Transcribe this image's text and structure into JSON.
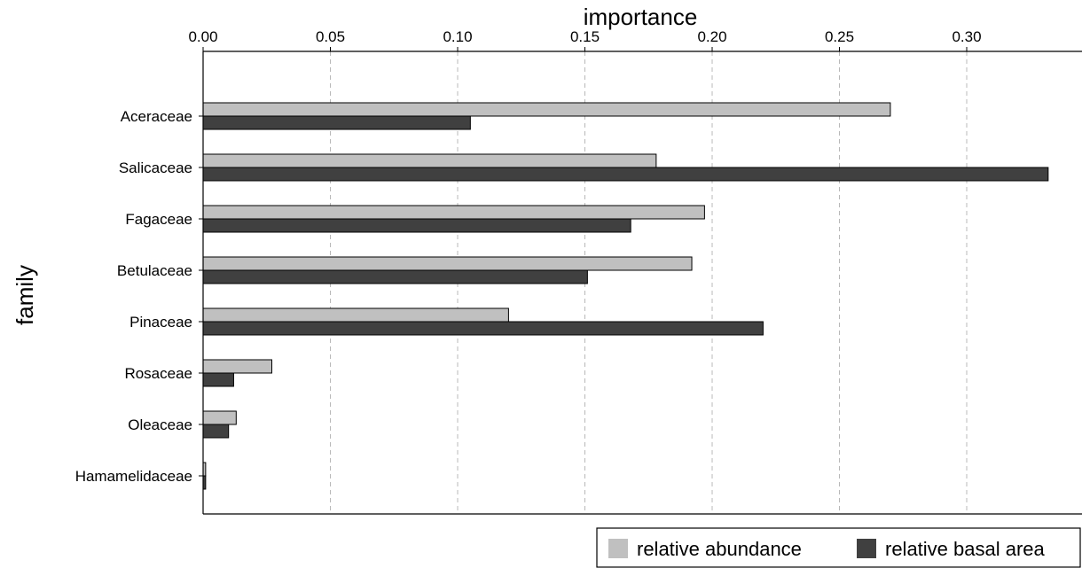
{
  "chart_data": {
    "type": "bar",
    "orientation": "horizontal",
    "xlabel": "importance",
    "ylabel": "family",
    "xlim": [
      0,
      0.34
    ],
    "xticks": [
      0.0,
      0.05,
      0.1,
      0.15,
      0.2,
      0.25,
      0.3
    ],
    "xtick_labels": [
      "0.00",
      "0.05",
      "0.10",
      "0.15",
      "0.20",
      "0.25",
      "0.30"
    ],
    "x_axis_position": "top",
    "grid": "vertical dashed",
    "legend_position": "bottom-right",
    "categories": [
      "Aceraceae",
      "Salicaceae",
      "Fagaceae",
      "Betulaceae",
      "Pinaceae",
      "Rosaceae",
      "Oleaceae",
      "Hamamelidaceae"
    ],
    "series": [
      {
        "name": "relative abundance",
        "color": "#c0c0c0",
        "values": [
          0.27,
          0.178,
          0.197,
          0.192,
          0.12,
          0.027,
          0.013,
          0.001
        ]
      },
      {
        "name": "relative basal area",
        "color": "#404040",
        "values": [
          0.105,
          0.332,
          0.168,
          0.151,
          0.22,
          0.012,
          0.01,
          0.001
        ]
      }
    ]
  }
}
